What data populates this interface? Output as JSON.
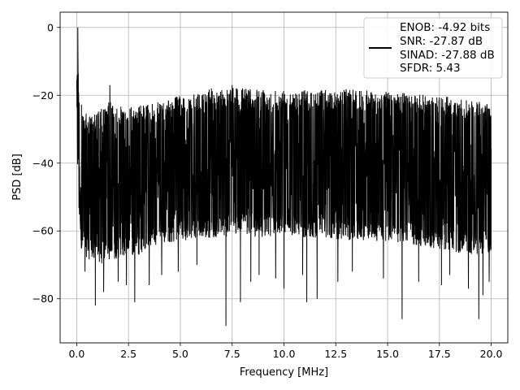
{
  "chart_data": {
    "type": "line",
    "title": "",
    "xlabel": "Frequency [MHz]",
    "ylabel": "PSD [dB]",
    "xlim": [
      -0.8,
      20.8
    ],
    "ylim": [
      -93,
      4.5
    ],
    "xticks": [
      0.0,
      2.5,
      5.0,
      7.5,
      10.0,
      12.5,
      15.0,
      17.5,
      20.0
    ],
    "xtick_labels": [
      "0.0",
      "2.5",
      "5.0",
      "7.5",
      "10.0",
      "12.5",
      "15.0",
      "17.5",
      "20.0"
    ],
    "yticks": [
      0,
      -20,
      -40,
      -60,
      -80
    ],
    "ytick_labels": [
      "0",
      "−20",
      "−40",
      "−60",
      "−80"
    ],
    "grid": true,
    "legend_position": "top-right",
    "series": [
      {
        "name": "",
        "color": "#000000",
        "envelope_upper": [
          [
            0.0,
            -18
          ],
          [
            0.05,
            0.0
          ],
          [
            0.1,
            -20
          ],
          [
            0.5,
            -26
          ],
          [
            1.0,
            -25
          ],
          [
            1.2,
            -23
          ],
          [
            1.5,
            -24
          ],
          [
            1.6,
            -17
          ],
          [
            1.7,
            -23
          ],
          [
            2.5,
            -23.5
          ],
          [
            3.5,
            -22.5
          ],
          [
            4.0,
            -22
          ],
          [
            5.0,
            -20
          ],
          [
            6.0,
            -19.5
          ],
          [
            6.5,
            -18
          ],
          [
            7.0,
            -18.5
          ],
          [
            7.5,
            -17
          ],
          [
            8.0,
            -18
          ],
          [
            9.0,
            -18.5
          ],
          [
            10.0,
            -18
          ],
          [
            11.0,
            -18.5
          ],
          [
            12.0,
            -18.5
          ],
          [
            13.0,
            -18.2
          ],
          [
            14.0,
            -18.6
          ],
          [
            15.0,
            -19
          ],
          [
            16.0,
            -19.5
          ],
          [
            17.0,
            -20
          ],
          [
            18.0,
            -20.5
          ],
          [
            19.0,
            -21.5
          ],
          [
            20.0,
            -22.5
          ]
        ],
        "envelope_lower": [
          [
            0.0,
            -45
          ],
          [
            0.2,
            -65
          ],
          [
            0.5,
            -68
          ],
          [
            1.0,
            -70
          ],
          [
            2.0,
            -68
          ],
          [
            3.0,
            -67
          ],
          [
            4.0,
            -64
          ],
          [
            5.0,
            -63
          ],
          [
            6.0,
            -62
          ],
          [
            7.0,
            -62
          ],
          [
            8.0,
            -61
          ],
          [
            9.0,
            -62
          ],
          [
            10.0,
            -61
          ],
          [
            11.0,
            -62
          ],
          [
            12.0,
            -62
          ],
          [
            13.0,
            -63
          ],
          [
            14.0,
            -63
          ],
          [
            15.0,
            -63
          ],
          [
            16.0,
            -64
          ],
          [
            17.0,
            -65
          ],
          [
            18.0,
            -66
          ],
          [
            19.0,
            -67
          ],
          [
            20.0,
            -67
          ]
        ],
        "deep_nulls": [
          [
            0.4,
            -72
          ],
          [
            0.9,
            -82
          ],
          [
            1.3,
            -78
          ],
          [
            2.0,
            -75
          ],
          [
            2.4,
            -76
          ],
          [
            2.8,
            -81
          ],
          [
            3.5,
            -76
          ],
          [
            4.1,
            -73
          ],
          [
            4.9,
            -72
          ],
          [
            5.8,
            -70
          ],
          [
            7.2,
            -88
          ],
          [
            7.9,
            -81
          ],
          [
            8.4,
            -75
          ],
          [
            8.8,
            -73
          ],
          [
            9.6,
            -74
          ],
          [
            10.0,
            -77
          ],
          [
            10.9,
            -73
          ],
          [
            11.1,
            -81
          ],
          [
            11.6,
            -80
          ],
          [
            12.6,
            -75
          ],
          [
            13.3,
            -72
          ],
          [
            14.8,
            -74
          ],
          [
            15.7,
            -86
          ],
          [
            16.5,
            -75
          ],
          [
            17.6,
            -76
          ],
          [
            18.0,
            -73
          ],
          [
            18.9,
            -77
          ],
          [
            19.4,
            -86
          ],
          [
            19.6,
            -79
          ],
          [
            19.9,
            -75
          ]
        ]
      }
    ],
    "legend": {
      "entries": [
        "ENOB: -4.92 bits",
        "SNR: -27.87 dB",
        "SINAD: -27.88 dB",
        "SFDR: 5.43"
      ]
    }
  }
}
